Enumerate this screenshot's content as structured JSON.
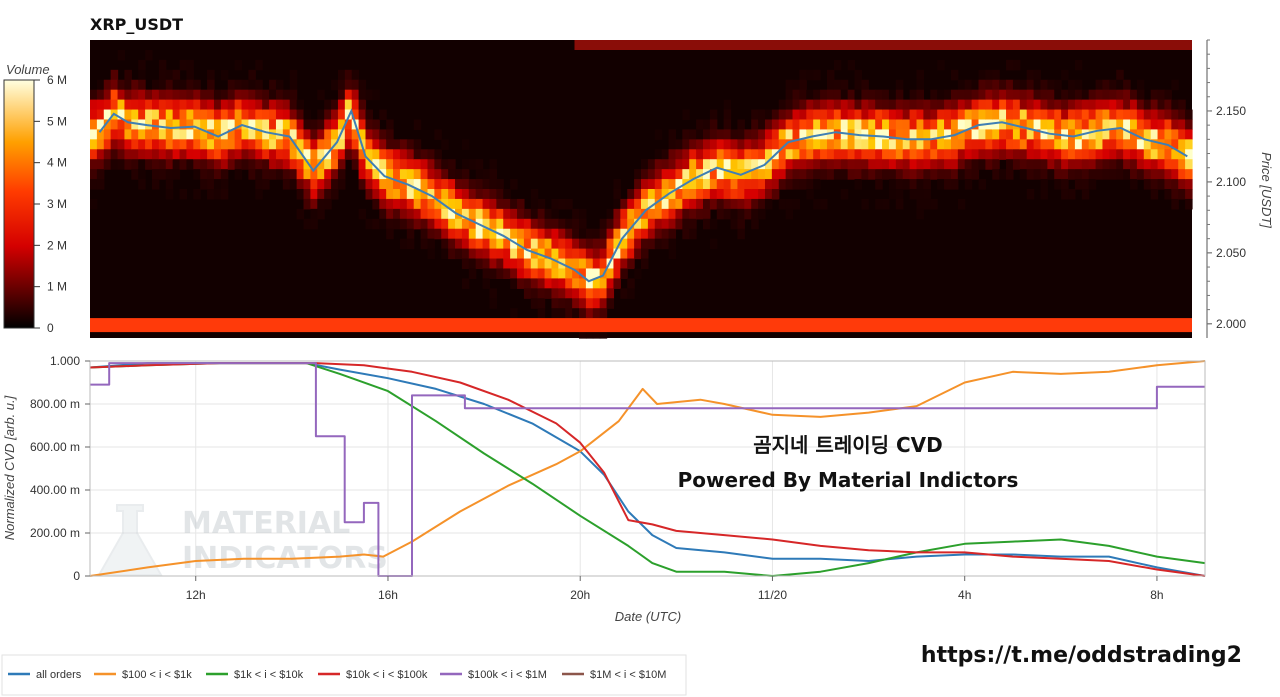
{
  "colors": {
    "all_orders": "#2e7ab8",
    "b100_1k": "#f5922a",
    "b1k_10k": "#2ca02c",
    "b10k_100k": "#d62728",
    "b100k_1m": "#9467bd",
    "b1m_10m": "#8c564b",
    "heat_price_line": "#3f7fb4",
    "grid": "#e6e6e6"
  },
  "overlay": {
    "line1": "곰지네 트레이딩 CVD",
    "line2": "Powered By Material Indictors",
    "watermark": [
      "MATERIAL",
      "INDICATORS"
    ],
    "url": "https://t.me/oddstrading2"
  },
  "chart_data": [
    {
      "type": "heatmap",
      "title": "XRP_USDT",
      "colorbar": {
        "label": "Volume",
        "ticks": [
          "0",
          "1 M",
          "2 M",
          "3 M",
          "4 M",
          "5 M",
          "6 M"
        ],
        "range": [
          0,
          6000000
        ]
      },
      "ylabel": "Price [USDT]",
      "ylim": [
        1.99,
        2.2
      ],
      "yticks": [
        "2.000",
        "2.050",
        "2.100",
        "2.150"
      ],
      "price_line": {
        "name": "price",
        "points": [
          [
            10.0,
            2.135
          ],
          [
            10.3,
            2.148
          ],
          [
            10.6,
            2.142
          ],
          [
            11.0,
            2.14
          ],
          [
            11.5,
            2.138
          ],
          [
            12.0,
            2.139
          ],
          [
            12.5,
            2.132
          ],
          [
            13.0,
            2.14
          ],
          [
            13.5,
            2.135
          ],
          [
            14.0,
            2.132
          ],
          [
            14.5,
            2.108
          ],
          [
            15.0,
            2.128
          ],
          [
            15.3,
            2.15
          ],
          [
            15.6,
            2.118
          ],
          [
            16.0,
            2.104
          ],
          [
            16.5,
            2.098
          ],
          [
            17.0,
            2.09
          ],
          [
            17.5,
            2.078
          ],
          [
            18.0,
            2.07
          ],
          [
            18.5,
            2.062
          ],
          [
            19.0,
            2.052
          ],
          [
            19.5,
            2.046
          ],
          [
            20.0,
            2.038
          ],
          [
            20.3,
            2.03
          ],
          [
            20.6,
            2.034
          ],
          [
            21.0,
            2.06
          ],
          [
            21.5,
            2.08
          ],
          [
            22.0,
            2.092
          ],
          [
            22.5,
            2.102
          ],
          [
            23.0,
            2.11
          ],
          [
            23.5,
            2.105
          ],
          [
            24.0,
            2.112
          ],
          [
            24.5,
            2.128
          ],
          [
            25.0,
            2.132
          ],
          [
            25.5,
            2.135
          ],
          [
            26.0,
            2.133
          ],
          [
            26.5,
            2.132
          ],
          [
            27.0,
            2.13
          ],
          [
            27.5,
            2.13
          ],
          [
            28.0,
            2.133
          ],
          [
            28.5,
            2.14
          ],
          [
            29.0,
            2.142
          ],
          [
            29.5,
            2.138
          ],
          [
            30.0,
            2.134
          ],
          [
            30.5,
            2.132
          ],
          [
            31.0,
            2.136
          ],
          [
            31.5,
            2.138
          ],
          [
            32.0,
            2.13
          ],
          [
            32.5,
            2.126
          ],
          [
            32.9,
            2.118
          ]
        ]
      }
    },
    {
      "type": "line",
      "xlabel": "Date (UTC)",
      "ylabel": "Normalized CVD [arb. u.]",
      "xlim": [
        9.8,
        33.0
      ],
      "ylim": [
        0,
        1.0
      ],
      "xticks": [
        {
          "x": 12,
          "label": "12h"
        },
        {
          "x": 16,
          "label": "16h"
        },
        {
          "x": 20,
          "label": "20h"
        },
        {
          "x": 24,
          "label": "11/20"
        },
        {
          "x": 28,
          "label": "4h"
        },
        {
          "x": 32,
          "label": "8h"
        }
      ],
      "yticks": [
        {
          "y": 0,
          "label": "0"
        },
        {
          "y": 0.2,
          "label": "200.00 m"
        },
        {
          "y": 0.4,
          "label": "400.00 m"
        },
        {
          "y": 0.6,
          "label": "600.00 m"
        },
        {
          "y": 0.8,
          "label": "800.00 m"
        },
        {
          "y": 1.0,
          "label": "1.000"
        }
      ],
      "series": [
        {
          "name": "all orders",
          "key": "all_orders",
          "points": [
            [
              9.8,
              0.97
            ],
            [
              11,
              0.99
            ],
            [
              12.5,
              0.99
            ],
            [
              14.3,
              0.99
            ],
            [
              15,
              0.96
            ],
            [
              16,
              0.92
            ],
            [
              17,
              0.87
            ],
            [
              18,
              0.8
            ],
            [
              19,
              0.71
            ],
            [
              20,
              0.58
            ],
            [
              20.5,
              0.47
            ],
            [
              21,
              0.3
            ],
            [
              21.5,
              0.19
            ],
            [
              22,
              0.13
            ],
            [
              23,
              0.11
            ],
            [
              24,
              0.08
            ],
            [
              25,
              0.08
            ],
            [
              26,
              0.07
            ],
            [
              27,
              0.09
            ],
            [
              28,
              0.1
            ],
            [
              29,
              0.1
            ],
            [
              30,
              0.09
            ],
            [
              31,
              0.09
            ],
            [
              32,
              0.04
            ],
            [
              33,
              0.0
            ]
          ]
        },
        {
          "name": "$100 < i < $1k",
          "key": "b100_1k",
          "points": [
            [
              9.8,
              0.0
            ],
            [
              11,
              0.04
            ],
            [
              12,
              0.07
            ],
            [
              13,
              0.08
            ],
            [
              14,
              0.08
            ],
            [
              15,
              0.09
            ],
            [
              15.5,
              0.1
            ],
            [
              15.9,
              0.09
            ],
            [
              16.5,
              0.16
            ],
            [
              17.5,
              0.3
            ],
            [
              18.5,
              0.42
            ],
            [
              19.5,
              0.52
            ],
            [
              20,
              0.58
            ],
            [
              20.8,
              0.72
            ],
            [
              21.3,
              0.87
            ],
            [
              21.6,
              0.8
            ],
            [
              22.5,
              0.82
            ],
            [
              23,
              0.8
            ],
            [
              24,
              0.75
            ],
            [
              25,
              0.74
            ],
            [
              26,
              0.76
            ],
            [
              27,
              0.79
            ],
            [
              28,
              0.9
            ],
            [
              29,
              0.95
            ],
            [
              30,
              0.94
            ],
            [
              31,
              0.95
            ],
            [
              32,
              0.98
            ],
            [
              33,
              1.0
            ]
          ]
        },
        {
          "name": "$1k < i < $10k",
          "key": "b1k_10k",
          "points": [
            [
              9.8,
              0.97
            ],
            [
              11,
              0.98
            ],
            [
              12.5,
              0.99
            ],
            [
              14.3,
              0.99
            ],
            [
              15,
              0.94
            ],
            [
              16,
              0.86
            ],
            [
              17,
              0.72
            ],
            [
              18,
              0.57
            ],
            [
              19,
              0.43
            ],
            [
              20,
              0.28
            ],
            [
              21,
              0.14
            ],
            [
              21.5,
              0.06
            ],
            [
              22,
              0.02
            ],
            [
              23,
              0.02
            ],
            [
              23.5,
              0.01
            ],
            [
              24,
              0.0
            ],
            [
              25,
              0.02
            ],
            [
              26,
              0.06
            ],
            [
              27,
              0.11
            ],
            [
              28,
              0.15
            ],
            [
              29,
              0.16
            ],
            [
              30,
              0.17
            ],
            [
              31,
              0.14
            ],
            [
              32,
              0.09
            ],
            [
              33,
              0.06
            ]
          ]
        },
        {
          "name": "$10k < i < $100k",
          "key": "b10k_100k",
          "points": [
            [
              9.8,
              0.97
            ],
            [
              11,
              0.98
            ],
            [
              12.5,
              0.99
            ],
            [
              14.5,
              0.99
            ],
            [
              15.5,
              0.98
            ],
            [
              16.5,
              0.95
            ],
            [
              17.5,
              0.9
            ],
            [
              18.5,
              0.82
            ],
            [
              19.5,
              0.71
            ],
            [
              20,
              0.62
            ],
            [
              20.5,
              0.48
            ],
            [
              21,
              0.26
            ],
            [
              21.5,
              0.24
            ],
            [
              22,
              0.21
            ],
            [
              23,
              0.19
            ],
            [
              24,
              0.17
            ],
            [
              25,
              0.14
            ],
            [
              26,
              0.12
            ],
            [
              27,
              0.11
            ],
            [
              28,
              0.11
            ],
            [
              29,
              0.09
            ],
            [
              30,
              0.08
            ],
            [
              31,
              0.07
            ],
            [
              32,
              0.03
            ],
            [
              33,
              0.0
            ]
          ]
        },
        {
          "name": "$100k < i < $1M",
          "key": "b100k_1m",
          "points": [
            [
              9.8,
              0.89
            ],
            [
              10.2,
              0.89
            ],
            [
              10.2,
              0.99
            ],
            [
              14.5,
              0.99
            ],
            [
              14.5,
              0.65
            ],
            [
              15.1,
              0.65
            ],
            [
              15.1,
              0.25
            ],
            [
              15.5,
              0.25
            ],
            [
              15.5,
              0.34
            ],
            [
              15.8,
              0.34
            ],
            [
              15.8,
              0.0
            ],
            [
              16.5,
              0.0
            ],
            [
              16.5,
              0.84
            ],
            [
              17.6,
              0.84
            ],
            [
              17.6,
              0.78
            ],
            [
              32.0,
              0.78
            ],
            [
              32.0,
              0.88
            ],
            [
              33.0,
              0.88
            ]
          ]
        },
        {
          "name": "$1M < i < $10M",
          "key": "b1m_10m",
          "points": []
        }
      ]
    }
  ]
}
